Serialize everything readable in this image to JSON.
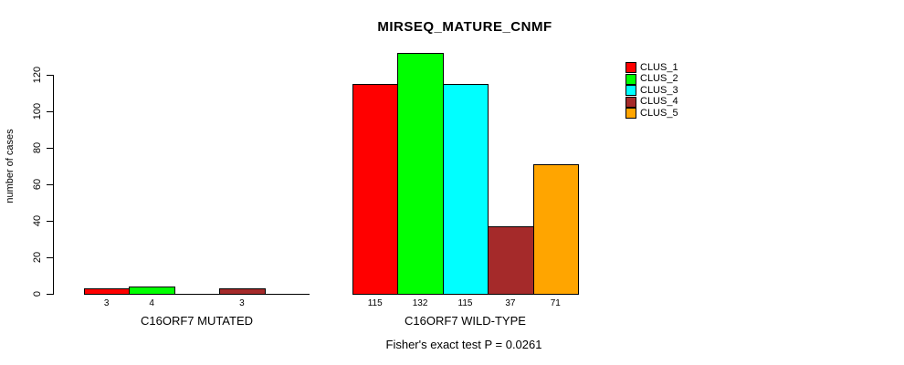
{
  "chart_data": {
    "type": "bar",
    "title": "MIRSEQ_MATURE_CNMF",
    "ylabel": "number of cases",
    "xlabel": "",
    "yticks": [
      0,
      20,
      40,
      60,
      80,
      100,
      120
    ],
    "ylim": [
      0,
      132
    ],
    "grid": false,
    "legend_position": "top-right",
    "series_names": [
      "CLUS_1",
      "CLUS_2",
      "CLUS_3",
      "CLUS_4",
      "CLUS_5"
    ],
    "colors": [
      "#FF0000",
      "#00FF00",
      "#00FFFF",
      "#A52A2A",
      "#FFA500"
    ],
    "groups": [
      {
        "label": "C16ORF7 MUTATED",
        "values": [
          3,
          4,
          0,
          3,
          0
        ]
      },
      {
        "label": "C16ORF7 WILD-TYPE",
        "values": [
          115,
          132,
          115,
          37,
          71
        ]
      }
    ],
    "bar_value_labels_shown": true,
    "annotation": "Fisher's exact test P = 0.0261"
  }
}
